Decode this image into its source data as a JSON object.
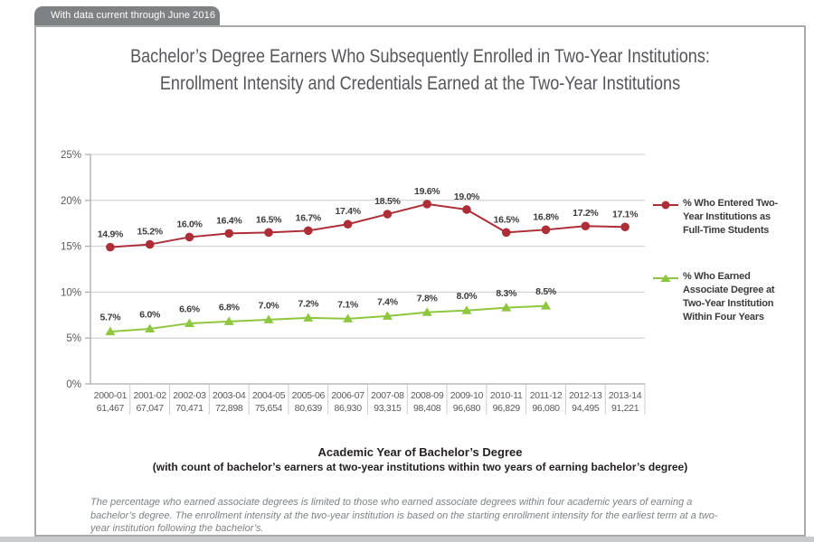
{
  "page": {
    "tab_label": "With data current through June 2016"
  },
  "title": {
    "line1": "Bachelor’s Degree Earners Who Subsequently Enrolled in Two-Year Institutions:",
    "line2": "Enrollment Intensity and Credentials Earned at the Two-Year Institutions"
  },
  "chart_data": {
    "type": "line",
    "title": "Bachelor’s Degree Earners Who Subsequently Enrolled in Two-Year Institutions: Enrollment Intensity and Credentials Earned at the Two-Year Institutions",
    "categories": [
      "2000-01",
      "2001-02",
      "2002-03",
      "2003-04",
      "2004-05",
      "2005-06",
      "2006-07",
      "2007-08",
      "2008-09",
      "2009-10",
      "2010-11",
      "2011-12",
      "2012-13",
      "2013-14"
    ],
    "category_counts": [
      "61,467",
      "67,047",
      "70,471",
      "72,898",
      "75,654",
      "80,639",
      "86,930",
      "93,315",
      "98,408",
      "96,680",
      "96,829",
      "96,080",
      "94,495",
      "91,221"
    ],
    "series": [
      {
        "name": "% Who Entered Two-Year Institutions as Full-Time Students",
        "marker": "circle",
        "color": "#ad2e36",
        "values": [
          14.9,
          15.2,
          16.0,
          16.4,
          16.5,
          16.7,
          17.4,
          18.5,
          19.6,
          19.0,
          16.5,
          16.8,
          17.2,
          17.1
        ]
      },
      {
        "name": "% Who Earned Associate Degree at Two-Year Institution Within Four Years",
        "marker": "triangle",
        "color": "#8ec63f",
        "values": [
          5.7,
          6.0,
          6.6,
          6.8,
          7.0,
          7.2,
          7.1,
          7.4,
          7.8,
          8.0,
          8.3,
          8.5
        ]
      }
    ],
    "ylim": [
      0,
      25
    ],
    "ytick_step": 5,
    "ytick_labels": [
      "0%",
      "5%",
      "10%",
      "15%",
      "20%",
      "25%"
    ],
    "grid": true,
    "legend_position": "right",
    "xlabel_line1": "Academic Year of Bachelor’s Degree",
    "xlabel_line2": "(with count of bachelor’s earners at two-year institutions within two years of earning bachelor’s degree)",
    "colors": {
      "grid": "#cbcccd",
      "axis": "#a9abad",
      "tick_text": "#58595b",
      "data_label_text": "#3b3b3d"
    }
  },
  "footnote": "The percentage who earned associate degrees is limited to those who earned associate degrees within four academic years of earning a bachelor’s degree. The enrollment intensity at the two-year institution is based on the starting enrollment intensity for the earliest term at a two-year institution following the bachelor’s."
}
